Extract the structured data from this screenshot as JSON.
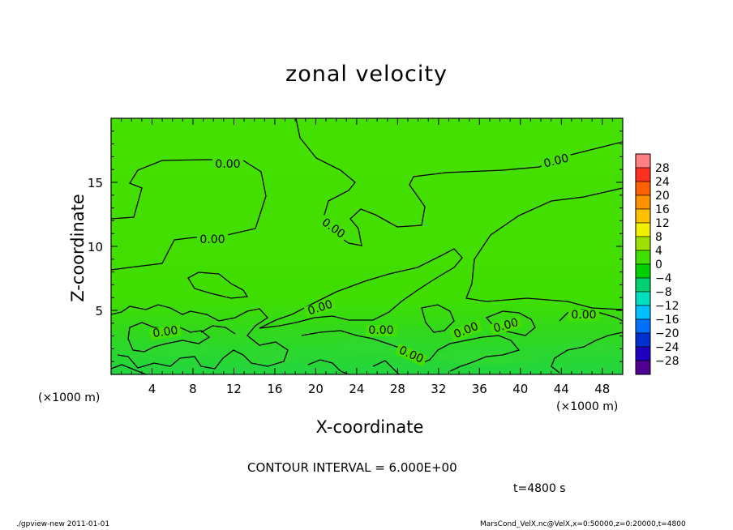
{
  "chart_data": {
    "type": "heatmap",
    "title": "zonal velocity",
    "xlabel": "X-coordinate",
    "ylabel": "Z-coordinate",
    "x_unit": "(×1000 m)",
    "x_ticks": [
      4,
      8,
      12,
      16,
      20,
      24,
      28,
      32,
      36,
      40,
      44,
      48
    ],
    "y_ticks": [
      5,
      10,
      15
    ],
    "xlim": [
      0,
      50
    ],
    "ylim": [
      0,
      20
    ],
    "contour_label": "0.00",
    "colorbar": {
      "levels": [
        28,
        24,
        20,
        16,
        12,
        8,
        4,
        0,
        -4,
        -8,
        -12,
        -16,
        -20,
        -24,
        -28
      ],
      "colors": [
        "#ff8080",
        "#ff3020",
        "#ff6000",
        "#ff9000",
        "#ffc000",
        "#f0f000",
        "#a0e000",
        "#40e000",
        "#00d000",
        "#00d070",
        "#00e0c0",
        "#00c0ff",
        "#0070ff",
        "#0030d0",
        "#2000c0",
        "#500090"
      ],
      "labels": [
        "28",
        "24",
        "20",
        "16",
        "12",
        "8",
        "4",
        "0",
        "−4",
        "−8",
        "−12",
        "−16",
        "−20",
        "−24",
        "−28"
      ]
    },
    "contour_interval_text": "CONTOUR INTERVAL = 6.000E+00",
    "time_text": "t=4800 s"
  },
  "footer": {
    "left": "./gpview-new   2011-01-01",
    "right": "MarsCond_VelX.nc@VelX,x=0:50000,z=0:20000,t=4800"
  }
}
